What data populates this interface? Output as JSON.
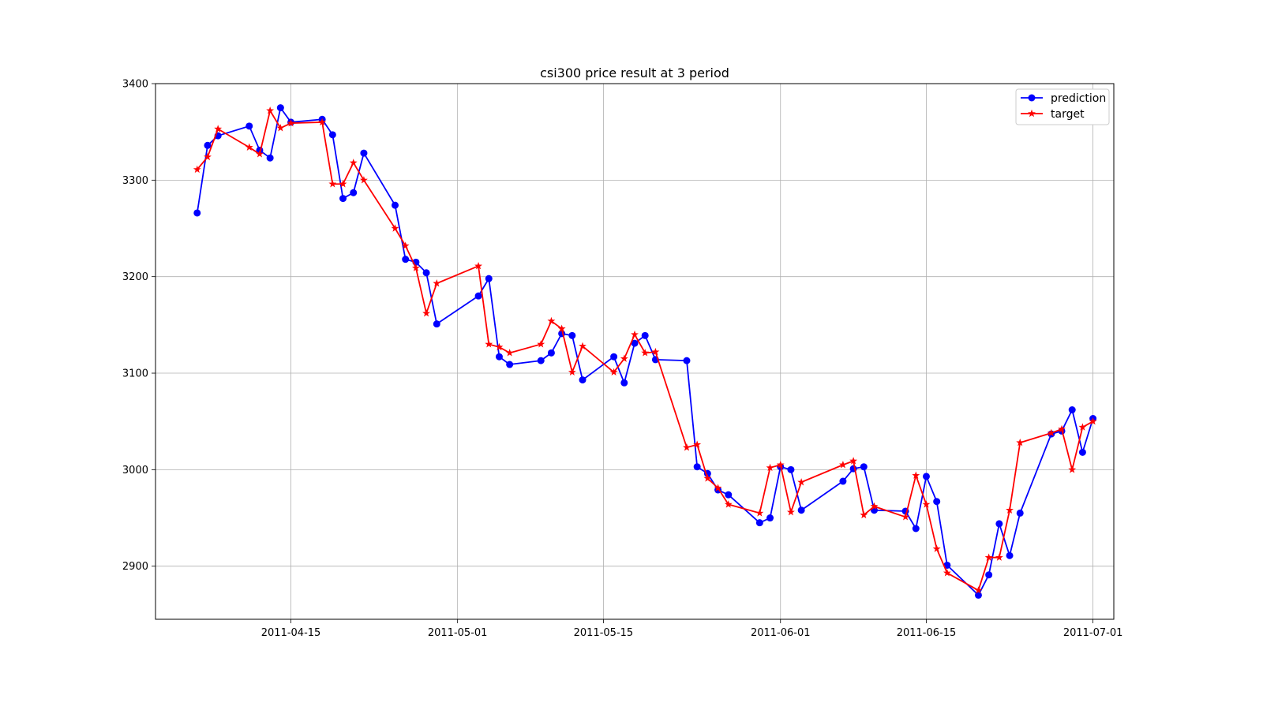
{
  "chart_data": {
    "type": "line",
    "title": "csi300 price result at 3 period",
    "xlabel": "",
    "ylabel": "",
    "ylim": [
      2845,
      3400
    ],
    "xlim": [
      "2011-04-02",
      "2011-07-03"
    ],
    "grid": true,
    "legend_position": "upper right",
    "y_ticks": [
      2900,
      3000,
      3100,
      3200,
      3300,
      3400
    ],
    "x_ticks": [
      "2011-04-15",
      "2011-05-01",
      "2011-05-15",
      "2011-06-01",
      "2011-06-15",
      "2011-07-01"
    ],
    "x": [
      "2011-04-06",
      "2011-04-07",
      "2011-04-08",
      "2011-04-11",
      "2011-04-12",
      "2011-04-13",
      "2011-04-14",
      "2011-04-15",
      "2011-04-18",
      "2011-04-19",
      "2011-04-20",
      "2011-04-21",
      "2011-04-22",
      "2011-04-25",
      "2011-04-26",
      "2011-04-27",
      "2011-04-28",
      "2011-04-29",
      "2011-05-03",
      "2011-05-04",
      "2011-05-05",
      "2011-05-06",
      "2011-05-09",
      "2011-05-10",
      "2011-05-11",
      "2011-05-12",
      "2011-05-13",
      "2011-05-16",
      "2011-05-17",
      "2011-05-18",
      "2011-05-19",
      "2011-05-20",
      "2011-05-23",
      "2011-05-24",
      "2011-05-25",
      "2011-05-26",
      "2011-05-27",
      "2011-05-30",
      "2011-05-31",
      "2011-06-01",
      "2011-06-02",
      "2011-06-03",
      "2011-06-07",
      "2011-06-08",
      "2011-06-09",
      "2011-06-10",
      "2011-06-13",
      "2011-06-14",
      "2011-06-15",
      "2011-06-16",
      "2011-06-17",
      "2011-06-20",
      "2011-06-21",
      "2011-06-22",
      "2011-06-23",
      "2011-06-24",
      "2011-06-27",
      "2011-06-28",
      "2011-06-29",
      "2011-06-30",
      "2011-07-01"
    ],
    "series": [
      {
        "name": "prediction",
        "color": "#0000ff",
        "marker": "circle",
        "values": [
          3266,
          3336,
          3346,
          3356,
          3331,
          3323,
          3375,
          3360,
          3363,
          3347,
          3281,
          3287,
          3328,
          3274,
          3218,
          3215,
          3204,
          3151,
          3180,
          3198,
          3117,
          3109,
          3113,
          3121,
          3141,
          3139,
          3093,
          3117,
          3090,
          3131,
          3139,
          3114,
          3113,
          3003,
          2996,
          2979,
          2974,
          2945,
          2950,
          3003,
          3000,
          2958,
          2988,
          3001,
          3003,
          2958,
          2957,
          2939,
          2993,
          2967,
          2901,
          2870,
          2891,
          2944,
          2911,
          2955,
          3037,
          3040,
          3062,
          3018,
          3053
        ]
      },
      {
        "name": "target",
        "color": "#ff0000",
        "marker": "star",
        "values": [
          3311,
          3324,
          3353,
          3334,
          3327,
          3372,
          3354,
          3359,
          3360,
          3296,
          3296,
          3318,
          3300,
          3250,
          3232,
          3209,
          3162,
          3193,
          3211,
          3130,
          3127,
          3121,
          3130,
          3154,
          3146,
          3101,
          3128,
          3101,
          3115,
          3140,
          3121,
          3122,
          3023,
          3026,
          2991,
          2981,
          2964,
          2955,
          3002,
          3005,
          2956,
          2987,
          3005,
          3009,
          2953,
          2962,
          2951,
          2994,
          2964,
          2918,
          2893,
          2875,
          2909,
          2909,
          2958,
          3028,
          3038,
          3042,
          3000,
          3044,
          3050
        ]
      }
    ]
  }
}
